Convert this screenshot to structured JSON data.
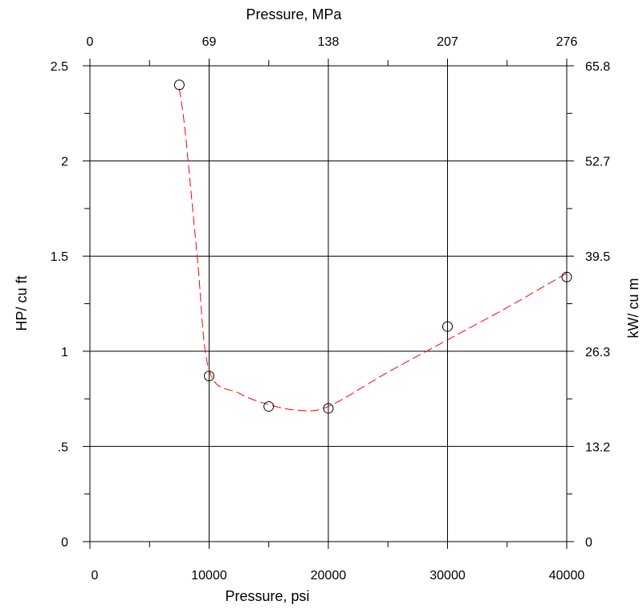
{
  "chart_data": {
    "type": "scatter",
    "x_axis_bottom": {
      "label": "Pressure, psi",
      "range": [
        0,
        40000
      ],
      "ticks": [
        0,
        10000,
        20000,
        30000,
        40000
      ],
      "tick_labels": [
        "0",
        "10000",
        "20000",
        "30000",
        "40000"
      ],
      "minor_ticks": [
        5000,
        15000,
        25000,
        35000
      ]
    },
    "x_axis_top": {
      "label": "Pressure, MPa",
      "tick_labels": [
        "0",
        "69",
        "138",
        "207",
        "276"
      ],
      "minor_tick_count": 1
    },
    "y_axis_left": {
      "label": "HP/ cu ft",
      "range": [
        0,
        2.5
      ],
      "ticks": [
        0,
        0.5,
        1,
        1.5,
        2,
        2.5
      ],
      "tick_labels": [
        "0",
        ".5",
        "1",
        "1.5",
        "2",
        "2.5"
      ],
      "minor_ticks": [
        0.25,
        0.75,
        1.25,
        1.75,
        2.25
      ]
    },
    "y_axis_right": {
      "label": "kW/ cu m",
      "tick_labels": [
        "0",
        "13.2",
        "26.3",
        "39.5",
        "52.7",
        "65.8"
      ]
    },
    "grid": true,
    "series": [
      {
        "marker": "open-circle",
        "x": [
          7500,
          10000,
          15000,
          20000,
          30000,
          40000
        ],
        "y": [
          2.4,
          0.87,
          0.71,
          0.7,
          1.13,
          1.39
        ]
      }
    ],
    "fit_curve": {
      "style": "dashed",
      "color": "#ff0000",
      "x": [
        7500,
        8000,
        9000,
        10000,
        12500,
        15000,
        17500,
        20000,
        25000,
        30000,
        35000,
        40000
      ],
      "y": [
        2.38,
        2.15,
        1.5,
        0.9,
        0.78,
        0.72,
        0.69,
        0.71,
        0.89,
        1.06,
        1.23,
        1.41
      ]
    }
  }
}
